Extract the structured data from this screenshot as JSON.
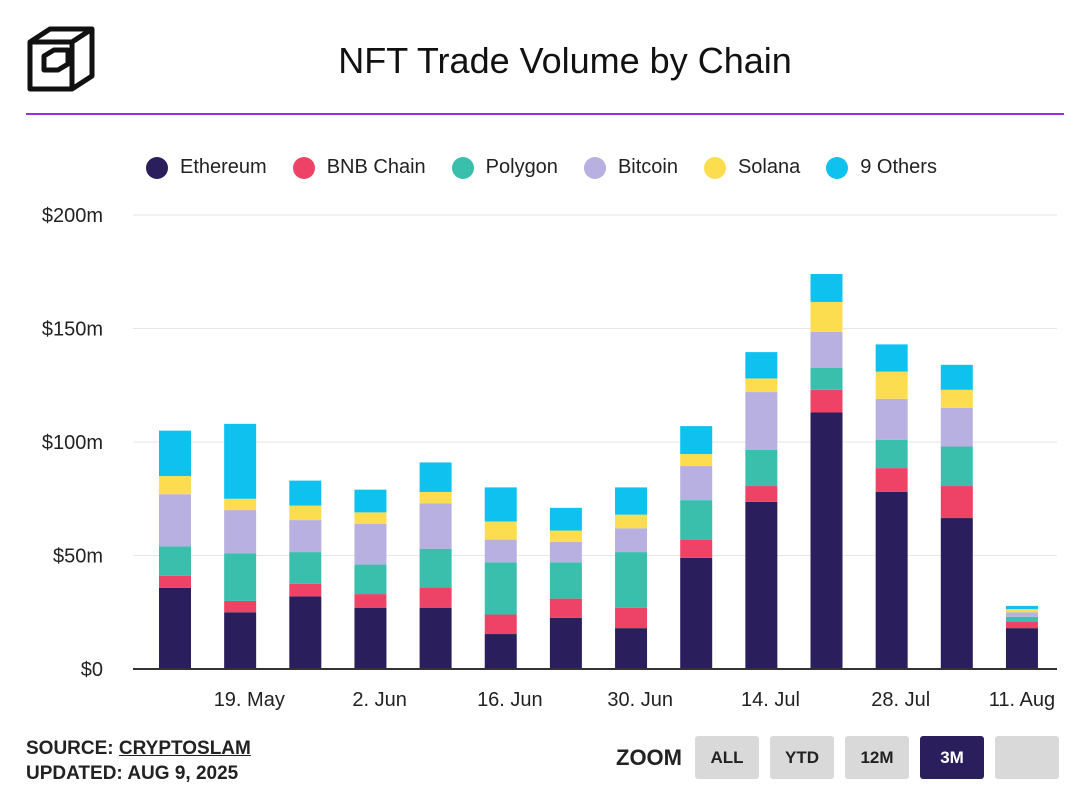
{
  "header": {
    "title": "NFT Trade Volume by Chain"
  },
  "footer": {
    "source_label": "SOURCE:",
    "source_name": "CRYPTOSLAM",
    "updated": "UPDATED: AUG 9, 2025"
  },
  "zoom": {
    "label": "ZOOM",
    "buttons": [
      "ALL",
      "YTD",
      "12M",
      "3M",
      ""
    ],
    "active": 3
  },
  "chart_data": {
    "type": "bar",
    "stacked": true,
    "title": "NFT Trade Volume by Chain",
    "ylim": [
      0,
      200
    ],
    "yticks": [
      {
        "value": 0,
        "label": "$0"
      },
      {
        "value": 50,
        "label": "$50m"
      },
      {
        "value": 100,
        "label": "$100m"
      },
      {
        "value": 150,
        "label": "$150m"
      },
      {
        "value": 200,
        "label": "$200m"
      }
    ],
    "xticks": [
      {
        "pos": 1.14,
        "label": "19. May"
      },
      {
        "pos": 3.14,
        "label": "2. Jun"
      },
      {
        "pos": 5.14,
        "label": "16. Jun"
      },
      {
        "pos": 7.14,
        "label": "30. Jun"
      },
      {
        "pos": 9.14,
        "label": "14. Jul"
      },
      {
        "pos": 11.14,
        "label": "28. Jul"
      },
      {
        "pos": 13,
        "label": "11. Aug"
      }
    ],
    "legend_position": "top",
    "series": [
      {
        "name": "Ethereum",
        "color": "#2a1f5c",
        "values": [
          35.7,
          25,
          32,
          27,
          27,
          15.4,
          22.5,
          18,
          49,
          73.6,
          113,
          78,
          66.5,
          18
        ]
      },
      {
        "name": "BNB Chain",
        "color": "#ee4266",
        "values": [
          5.3,
          5,
          5.5,
          6,
          9,
          8.6,
          8.5,
          9,
          8,
          7,
          10,
          10.5,
          14.1,
          2.7
        ]
      },
      {
        "name": "Polygon",
        "color": "#3bbfad",
        "values": [
          13,
          21,
          14,
          13,
          17,
          23,
          16,
          24.5,
          17.4,
          15.9,
          9.6,
          12.5,
          17.4,
          2.3
        ]
      },
      {
        "name": "Bitcoin",
        "color": "#b7b0e0",
        "values": [
          23,
          19,
          14.1,
          18,
          20,
          10,
          9,
          10.5,
          15,
          25.5,
          15.9,
          18,
          17,
          2
        ]
      },
      {
        "name": "Solana",
        "color": "#fcdd4f",
        "values": [
          8,
          5,
          6.4,
          5,
          5,
          8,
          5,
          6,
          5.3,
          6,
          13.2,
          12,
          8,
          1.4
        ]
      },
      {
        "name": "9 Others",
        "color": "#0ec1ef",
        "values": [
          20,
          33,
          11,
          10,
          13,
          15,
          10,
          12,
          12.3,
          11.6,
          12.3,
          12,
          11,
          1.4
        ]
      }
    ]
  }
}
